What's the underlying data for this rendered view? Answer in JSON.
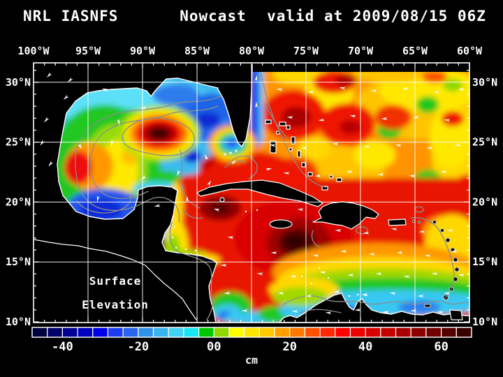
{
  "title": {
    "model": "NRL IASNFS",
    "product": "Nowcast",
    "valid": "valid at 2009/08/15 06Z"
  },
  "axes": {
    "top": [
      "100°W",
      "95°W",
      "90°W",
      "85°W",
      "80°W",
      "75°W",
      "70°W",
      "65°W",
      "60°W"
    ],
    "left": [
      "30°N",
      "25°N",
      "20°N",
      "15°N",
      "10°N"
    ],
    "right": [
      "30°N",
      "25°N",
      "20°N",
      "15°N",
      "10°N"
    ]
  },
  "map_overlay": {
    "line1": "Surface",
    "line2": "Elevation"
  },
  "colorbar": {
    "unit": "cm",
    "tick_labels": [
      "-40",
      "-20",
      "00",
      "20",
      "40",
      "60"
    ],
    "tick_boundary_index": [
      2,
      7,
      12,
      17,
      22,
      27
    ],
    "colors": [
      "#000040",
      "#00006a",
      "#000094",
      "#0000be",
      "#0000e8",
      "#1c3cf4",
      "#2864ee",
      "#3090ea",
      "#38b4ee",
      "#44d2f4",
      "#18e6f2",
      "#00c800",
      "#90d800",
      "#ffff00",
      "#ffe400",
      "#ffc800",
      "#ffa000",
      "#ff7800",
      "#ff5000",
      "#ff2800",
      "#ff0000",
      "#ec0000",
      "#d80000",
      "#c40000",
      "#a80000",
      "#8c0000",
      "#700000",
      "#540000",
      "#3a0000"
    ]
  },
  "chart_data": {
    "type": "heatmap",
    "title": "NRL IASNFS Nowcast valid at 2009/08/15 06Z",
    "variable": "Surface Elevation",
    "unit": "cm",
    "x_axis": {
      "label": "Longitude",
      "ticks": [
        "100°W",
        "95°W",
        "90°W",
        "85°W",
        "80°W",
        "75°W",
        "70°W",
        "65°W",
        "60°W"
      ],
      "range": [
        "100°W",
        "60°W"
      ]
    },
    "y_axis": {
      "label": "Latitude",
      "ticks": [
        "30°N",
        "25°N",
        "20°N",
        "15°N",
        "10°N"
      ],
      "range": [
        "10°N",
        "~31.5°N"
      ]
    },
    "grid": true,
    "grid_spacing_deg": 5,
    "legend_position": "bottom",
    "colorbar": {
      "tick_values": [
        -40,
        -20,
        0,
        20,
        40,
        60
      ],
      "approx_range_cm": [
        -48,
        68
      ],
      "n_cells": 29,
      "cell_width_cm": 4
    },
    "overlays": [
      "white current vector arrows",
      "gray contour lines",
      "black land mask with white coastlines",
      "white 5-degree graticule"
    ],
    "features": [
      {
        "name": "Loop Current warm eddy high",
        "lon": "88.5°W",
        "lat": "25.7°N",
        "value_cm": ">64"
      },
      {
        "name": "western Gulf of Mexico high",
        "lon": "96.5°W",
        "lat": "23°N",
        "value_cm": "~40"
      },
      {
        "name": "western Gulf moderate ridge (green/yellow)",
        "lon": "94°W",
        "lat": "21-26°N",
        "value_cm": "0 to 15"
      },
      {
        "name": "Bay of Campeche low",
        "lon": "93.5°W",
        "lat": "20.5°N",
        "value_cm": "~-25"
      },
      {
        "name": "northeastern Gulf low",
        "lon": "83.5°W",
        "lat": "26.5°N",
        "value_cm": "~-25"
      },
      {
        "name": "cold cyclonic eddy in Straits of Florida",
        "lon": "81.7°W",
        "lat": "24.8°N",
        "value_cm": "~-25"
      },
      {
        "name": "Gulf Stream low band east of Florida",
        "lon": "80°W",
        "lat": "25-31°N",
        "value_cm": "~-35"
      },
      {
        "name": "Caribbean high south of Hispaniola",
        "lon": "76°W",
        "lat": "16.5°N",
        "value_cm": ">64"
      },
      {
        "name": "Yucatan Channel / NW Caribbean high",
        "lon": "84.5°W",
        "lat": "18-22°N",
        "value_cm": "50-65"
      },
      {
        "name": "broad subtropical Atlantic high",
        "lon": "75-60°W",
        "lat": "20-30°N",
        "value_cm": "15-45"
      },
      {
        "name": "low along Venezuela-Colombia coast",
        "lon": "75-62°W",
        "lat": "10-12°N",
        "value_cm": "~-15"
      },
      {
        "name": "low off Nicaragua coast",
        "lon": "82°W",
        "lat": "11-13°N",
        "value_cm": "~-15"
      },
      {
        "name": "westward current vectors across Caribbean and tropical Atlantic"
      }
    ]
  }
}
